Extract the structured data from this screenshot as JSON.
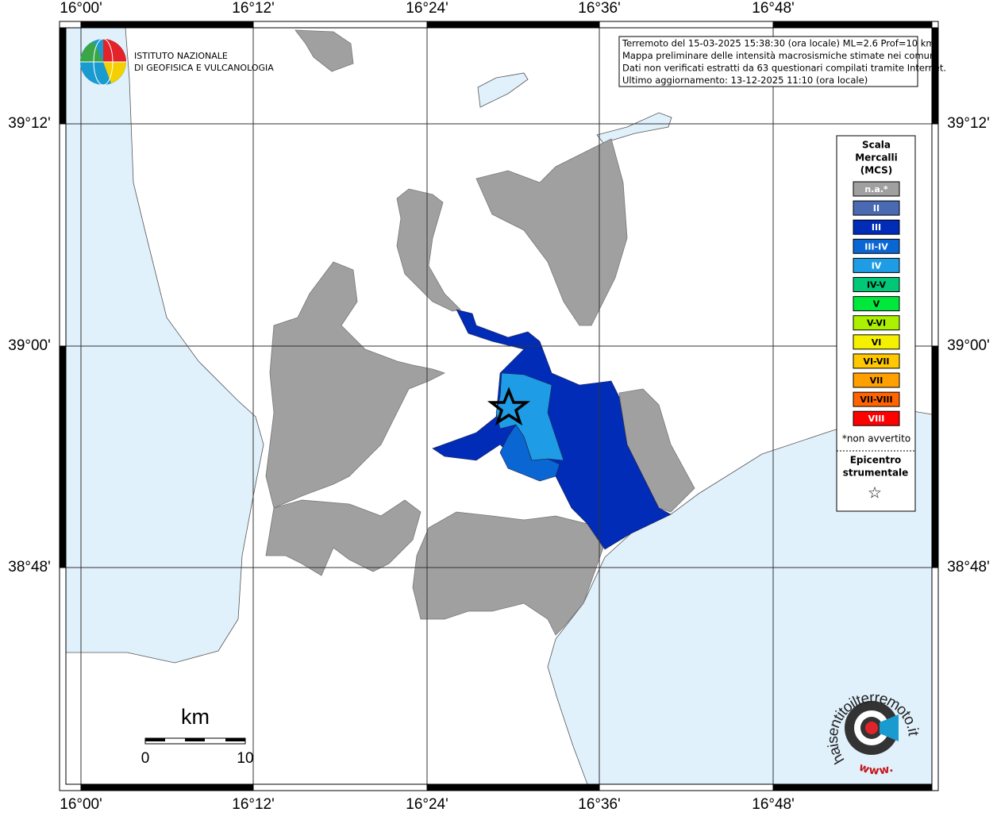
{
  "map": {
    "lon_labels": [
      "16°00'",
      "16°12'",
      "16°24'",
      "16°36'",
      "16°48'"
    ],
    "lat_labels": [
      "39°12'",
      "39°00'",
      "38°48'"
    ]
  },
  "logo": {
    "line1": "ISTITUTO NAZIONALE",
    "line2": "DI GEOFISICA E VULCANOLOGIA"
  },
  "info": {
    "lines": [
      "Terremoto del 15-03-2025 15:38:30 (ora locale) ML=2.6 Prof=10 km",
      "Mappa preliminare delle intensità macrosismiche stimate nei comuni",
      "Dati non verificati estratti da 63 questionari compilati tramite Internet.",
      "Ultimo aggiornamento: 13-12-2025 11:10 (ora locale)"
    ]
  },
  "legend": {
    "title": [
      "Scala",
      "Mercalli",
      "(MCS)"
    ],
    "items": [
      {
        "label": "n.a.*",
        "color": "#a0a0a0",
        "text": "#ffffff"
      },
      {
        "label": "II",
        "color": "#4a6ab4",
        "text": "#ffffff"
      },
      {
        "label": "III",
        "color": "#002cb8",
        "text": "#ffffff"
      },
      {
        "label": "III-IV",
        "color": "#0a66d2",
        "text": "#ffffff"
      },
      {
        "label": "IV",
        "color": "#1e9de6",
        "text": "#ffffff"
      },
      {
        "label": "IV-V",
        "color": "#00c878",
        "text": "#000000"
      },
      {
        "label": "V",
        "color": "#00e83c",
        "text": "#000000"
      },
      {
        "label": "V-VI",
        "color": "#aaf000",
        "text": "#000000"
      },
      {
        "label": "VI",
        "color": "#f5f000",
        "text": "#000000"
      },
      {
        "label": "VI-VII",
        "color": "#ffc800",
        "text": "#000000"
      },
      {
        "label": "VII",
        "color": "#ffa000",
        "text": "#000000"
      },
      {
        "label": "VII-VIII",
        "color": "#ff6400",
        "text": "#000000"
      },
      {
        "label": "VIII",
        "color": "#ff0000",
        "text": "#ffffff"
      }
    ],
    "note": "*non avvertito",
    "epicenter": [
      "Epicentro",
      "strumentale"
    ],
    "star": "☆"
  },
  "scalebar": {
    "unit": "km",
    "start": "0",
    "end": "10"
  },
  "watermark": {
    "site": "haisentitoilterremoto.it",
    "prefix": "www."
  }
}
